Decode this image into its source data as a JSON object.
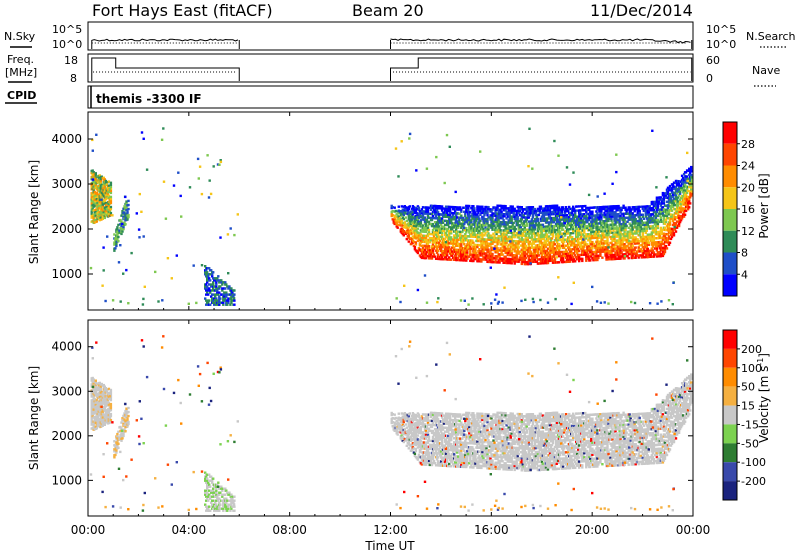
{
  "header": {
    "station": "Fort Hays East (fitACF)",
    "beam": "Beam 20",
    "date": "11/Dec/2014"
  },
  "side_labels": {
    "nsky": "N.Sky",
    "freq_line1": "Freq.",
    "freq_line2": "[MHz]",
    "cpid": "CPID",
    "nsearch": "N.Search",
    "nave": "Nave"
  },
  "cpid_text": "themis -3300 IF",
  "panels": {
    "nsky": {
      "ticks": [
        "10^5",
        "10^0"
      ],
      "right_ticks": [
        "10^5",
        "10^0"
      ]
    },
    "freq": {
      "ticks": [
        "18",
        "8"
      ],
      "right_ticks": [
        "60",
        "0"
      ]
    }
  },
  "chart_data": [
    {
      "type": "heatmap",
      "name": "power",
      "ylabel": "Slant Range [km]",
      "ylim": [
        200,
        4600
      ],
      "yticks": [
        "4000",
        "3000",
        "2000",
        "1000"
      ],
      "colorbar": {
        "label": "Power [dB]",
        "ticks": [
          "28",
          "24",
          "20",
          "16",
          "12",
          "8",
          "4"
        ],
        "colors": [
          "#0000ff",
          "#1e4ec8",
          "#2e8b57",
          "#7ec850",
          "#f5c518",
          "#ff8c00",
          "#ff4500",
          "#ff0000"
        ]
      }
    },
    {
      "type": "heatmap",
      "name": "velocity",
      "ylabel": "Slant Range [km]",
      "ylim": [
        200,
        4600
      ],
      "yticks": [
        "4000",
        "3000",
        "2000",
        "1000"
      ],
      "colorbar": {
        "label": "Velocity [m s",
        "label_sup": "-1",
        "label_end": "]",
        "ticks": [
          "200",
          "100",
          "50",
          "15",
          "-15",
          "-50",
          "-100",
          "-200"
        ],
        "colors": [
          "#1a237e",
          "#3949ab",
          "#2e7d32",
          "#7cd250",
          "#c8c8c8",
          "#f5b041",
          "#ff8c00",
          "#ff4500",
          "#ff0000"
        ]
      }
    }
  ],
  "x_axis": {
    "label": "Time UT",
    "ticks": [
      "00:00",
      "04:00",
      "08:00",
      "12:00",
      "16:00",
      "20:00",
      "00:00"
    ],
    "hours": [
      0,
      4,
      8,
      12,
      16,
      20,
      24
    ]
  }
}
